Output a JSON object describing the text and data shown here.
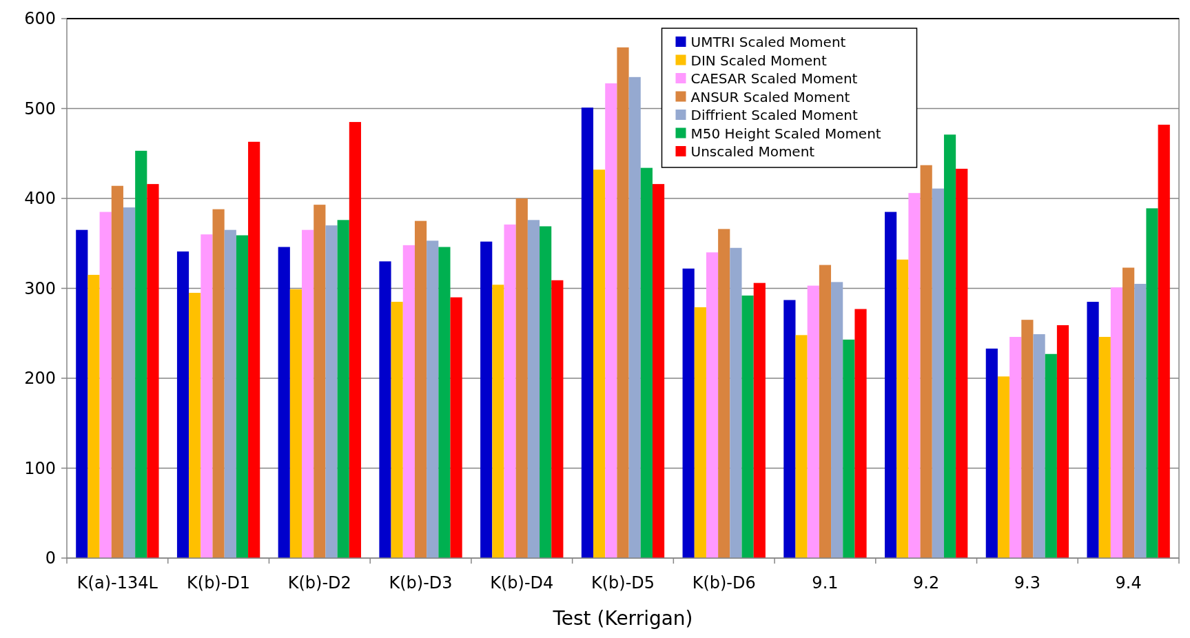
{
  "chart_data": {
    "type": "bar",
    "xlabel": "Test (Kerrigan)",
    "categories": [
      "K(a)-134L",
      "K(b)-D1",
      "K(b)-D2",
      "K(b)-D3",
      "K(b)-D4",
      "K(b)-D5",
      "K(b)-D6",
      "9.1",
      "9.2",
      "9.3",
      "9.4"
    ],
    "series": [
      {
        "name": "UMTRI Scaled Moment",
        "color": "#0000cc",
        "values": [
          365,
          341,
          346,
          330,
          352,
          501,
          322,
          287,
          385,
          233,
          285
        ]
      },
      {
        "name": "DIN Scaled Moment",
        "color": "#ffc000",
        "values": [
          315,
          295,
          299,
          285,
          304,
          432,
          279,
          248,
          332,
          202,
          246
        ]
      },
      {
        "name": "CAESAR Scaled Moment",
        "color": "#ff99ff",
        "values": [
          385,
          360,
          365,
          348,
          371,
          528,
          340,
          303,
          406,
          246,
          301
        ]
      },
      {
        "name": "ANSUR Scaled Moment",
        "color": "#d9843f",
        "values": [
          414,
          388,
          393,
          375,
          400,
          568,
          366,
          326,
          437,
          265,
          323
        ]
      },
      {
        "name": "Diffrient Scaled Moment",
        "color": "#95a9d0",
        "values": [
          390,
          365,
          370,
          353,
          376,
          535,
          345,
          307,
          411,
          249,
          305
        ]
      },
      {
        "name": "M50 Height Scaled Moment",
        "color": "#00b050",
        "values": [
          453,
          359,
          376,
          346,
          369,
          434,
          292,
          243,
          471,
          227,
          389
        ]
      },
      {
        "name": "Unscaled Moment",
        "color": "#ff0000",
        "values": [
          416,
          463,
          485,
          290,
          309,
          416,
          306,
          277,
          433,
          259,
          482
        ]
      }
    ],
    "ylim": [
      0,
      600
    ],
    "yticks": [
      0,
      100,
      200,
      300,
      400,
      500,
      600
    ],
    "grid": "y",
    "legend": "top right"
  }
}
